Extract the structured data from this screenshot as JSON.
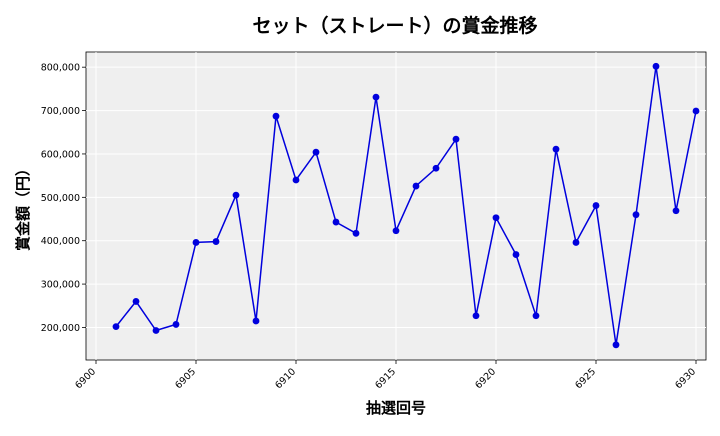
{
  "chart_data": {
    "type": "line",
    "title": "セット（ストレート）の賞金推移",
    "xlabel": "抽選回号",
    "ylabel": "賞金額（円）",
    "xlim": [
      6899.5,
      6930.5
    ],
    "ylim": [
      125000,
      835000
    ],
    "xticks": [
      6900,
      6905,
      6910,
      6915,
      6920,
      6925,
      6930
    ],
    "xtick_labels": [
      "6900",
      "6905",
      "6910",
      "6915",
      "6920",
      "6925",
      "6930"
    ],
    "yticks": [
      200000,
      300000,
      400000,
      500000,
      600000,
      700000,
      800000
    ],
    "ytick_labels": [
      "200,000",
      "300,000",
      "400,000",
      "500,000",
      "600,000",
      "700,000",
      "800,000"
    ],
    "grid": true,
    "x": [
      6901,
      6902,
      6903,
      6904,
      6905,
      6906,
      6907,
      6908,
      6909,
      6910,
      6911,
      6912,
      6913,
      6914,
      6915,
      6916,
      6917,
      6918,
      6919,
      6920,
      6921,
      6922,
      6923,
      6924,
      6925,
      6926,
      6927,
      6928,
      6929,
      6930
    ],
    "series": [
      {
        "values": [
          202000,
          260000,
          193000,
          207000,
          396000,
          398000,
          505000,
          215000,
          687000,
          540000,
          604000,
          443000,
          417000,
          731000,
          423000,
          526000,
          567000,
          634000,
          227000,
          453000,
          368000,
          227000,
          611000,
          396000,
          481000,
          160000,
          460000,
          802000,
          469000,
          699000
        ],
        "color": "#0000dd"
      }
    ],
    "colors": {
      "plot_bg": "#efefef",
      "grid": "#ffffff",
      "line": "#0000dd",
      "marker": "#0000dd"
    }
  }
}
